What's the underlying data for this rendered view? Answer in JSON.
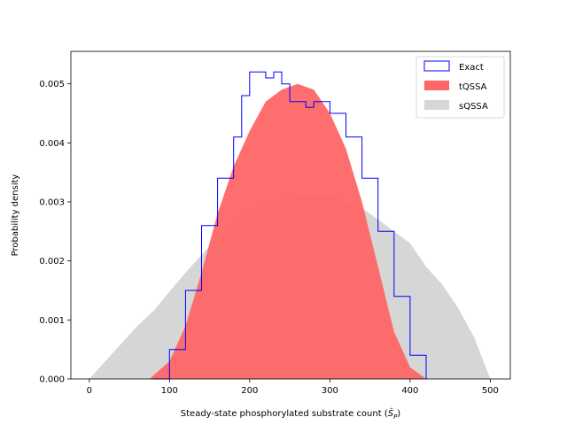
{
  "chart_data": {
    "type": "area",
    "xlabel_main": "Steady-state phosphorylated substrate count (",
    "xlabel_symbol": "Ŝ",
    "xlabel_sub": "P",
    "xlabel_end": ")",
    "ylabel": "Probability density",
    "xlim": [
      -23,
      525
    ],
    "ylim": [
      0,
      0.00555
    ],
    "xticks": [
      0,
      100,
      200,
      300,
      400,
      500
    ],
    "xtick_labels": [
      "0",
      "100",
      "200",
      "300",
      "400",
      "500"
    ],
    "yticks": [
      0,
      0.001,
      0.002,
      0.003,
      0.004,
      0.005
    ],
    "ytick_labels": [
      "0.000",
      "0.001",
      "0.002",
      "0.003",
      "0.004",
      "0.005"
    ],
    "grid": false,
    "legend_position": "top-right",
    "series": [
      {
        "name": "sQSSA",
        "style": "filled",
        "color": "#d6d6d6",
        "x": [
          0,
          20,
          40,
          60,
          80,
          100,
          120,
          140,
          160,
          180,
          200,
          220,
          240,
          260,
          280,
          300,
          320,
          340,
          360,
          380,
          400,
          420,
          440,
          460,
          480,
          500
        ],
        "y": [
          0.0,
          0.0003,
          0.0006,
          0.0009,
          0.00115,
          0.00148,
          0.0018,
          0.0021,
          0.0024,
          0.0026,
          0.0028,
          0.003,
          0.003,
          0.0031,
          0.0031,
          0.0031,
          0.003,
          0.0029,
          0.0027,
          0.0025,
          0.0023,
          0.0019,
          0.0016,
          0.0012,
          0.0007,
          0.0
        ]
      },
      {
        "name": "tQSSA",
        "style": "filled",
        "color": "#ff6666",
        "x": [
          75,
          100,
          120,
          140,
          160,
          180,
          200,
          220,
          240,
          260,
          280,
          300,
          320,
          340,
          360,
          380,
          400,
          420
        ],
        "y": [
          0.0,
          0.0003,
          0.0009,
          0.0018,
          0.0028,
          0.0036,
          0.0042,
          0.0047,
          0.0049,
          0.005,
          0.0049,
          0.0045,
          0.0039,
          0.003,
          0.0019,
          0.0008,
          0.0002,
          0.0
        ]
      },
      {
        "name": "Exact",
        "style": "step",
        "color": "#0000ff",
        "x": [
          80,
          100,
          120,
          140,
          160,
          180,
          190,
          200,
          210,
          220,
          230,
          240,
          250,
          260,
          270,
          280,
          300,
          320,
          340,
          360,
          380,
          400,
          420
        ],
        "y": [
          0.0,
          0.0005,
          0.0015,
          0.0026,
          0.0034,
          0.0041,
          0.0048,
          0.0052,
          0.0052,
          0.0051,
          0.0052,
          0.005,
          0.0047,
          0.0047,
          0.0046,
          0.0047,
          0.0045,
          0.0041,
          0.0034,
          0.0025,
          0.0014,
          0.0004,
          0.0
        ]
      }
    ],
    "legend": [
      {
        "label": "Exact",
        "color": "#0000ff",
        "style": "outline"
      },
      {
        "label": "tQSSA",
        "color": "#ff6666",
        "style": "filled"
      },
      {
        "label": "sQSSA",
        "color": "#d6d6d6",
        "style": "filled"
      }
    ]
  }
}
